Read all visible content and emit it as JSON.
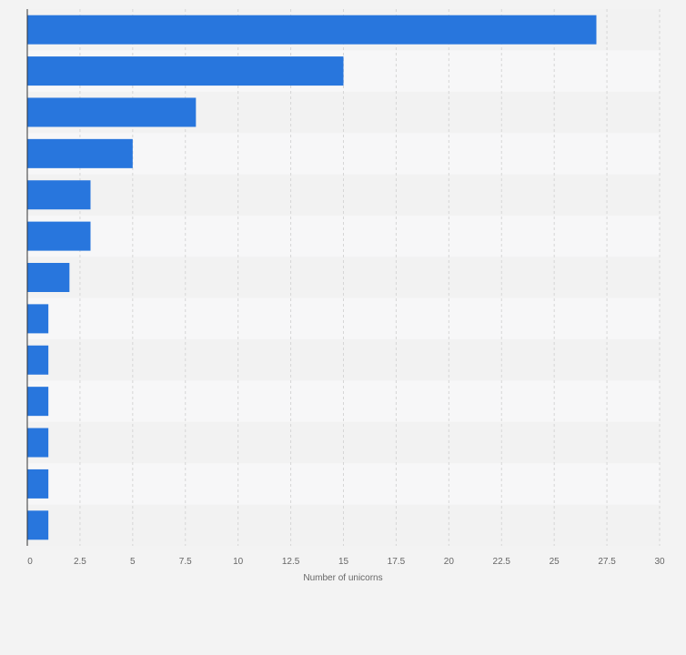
{
  "chart_data": {
    "type": "bar",
    "orientation": "horizontal",
    "categories": [
      "",
      "",
      "",
      "",
      "",
      "",
      "",
      "",
      "",
      "",
      "",
      "",
      ""
    ],
    "values": [
      27,
      15,
      8,
      5,
      3,
      3,
      2,
      1,
      1,
      1,
      1,
      1,
      1
    ],
    "xlabel": "Number of unicorns",
    "ylabel": "",
    "xlim": [
      0,
      30
    ],
    "xticks": [
      0,
      2.5,
      5,
      7.5,
      10,
      12.5,
      15,
      17.5,
      20,
      22.5,
      25,
      27.5,
      30
    ],
    "xtick_labels": [
      "0",
      "2.5",
      "5",
      "7.5",
      "10",
      "12.5",
      "15",
      "17.5",
      "20",
      "22.5",
      "25",
      "27.5",
      "30"
    ],
    "grid": true,
    "bar_color": "#2876dd",
    "band_colors": [
      "#f2f2f2",
      "#f7f7f8"
    ],
    "grid_color": "#d6d6d6",
    "axis_color": "#333333"
  }
}
